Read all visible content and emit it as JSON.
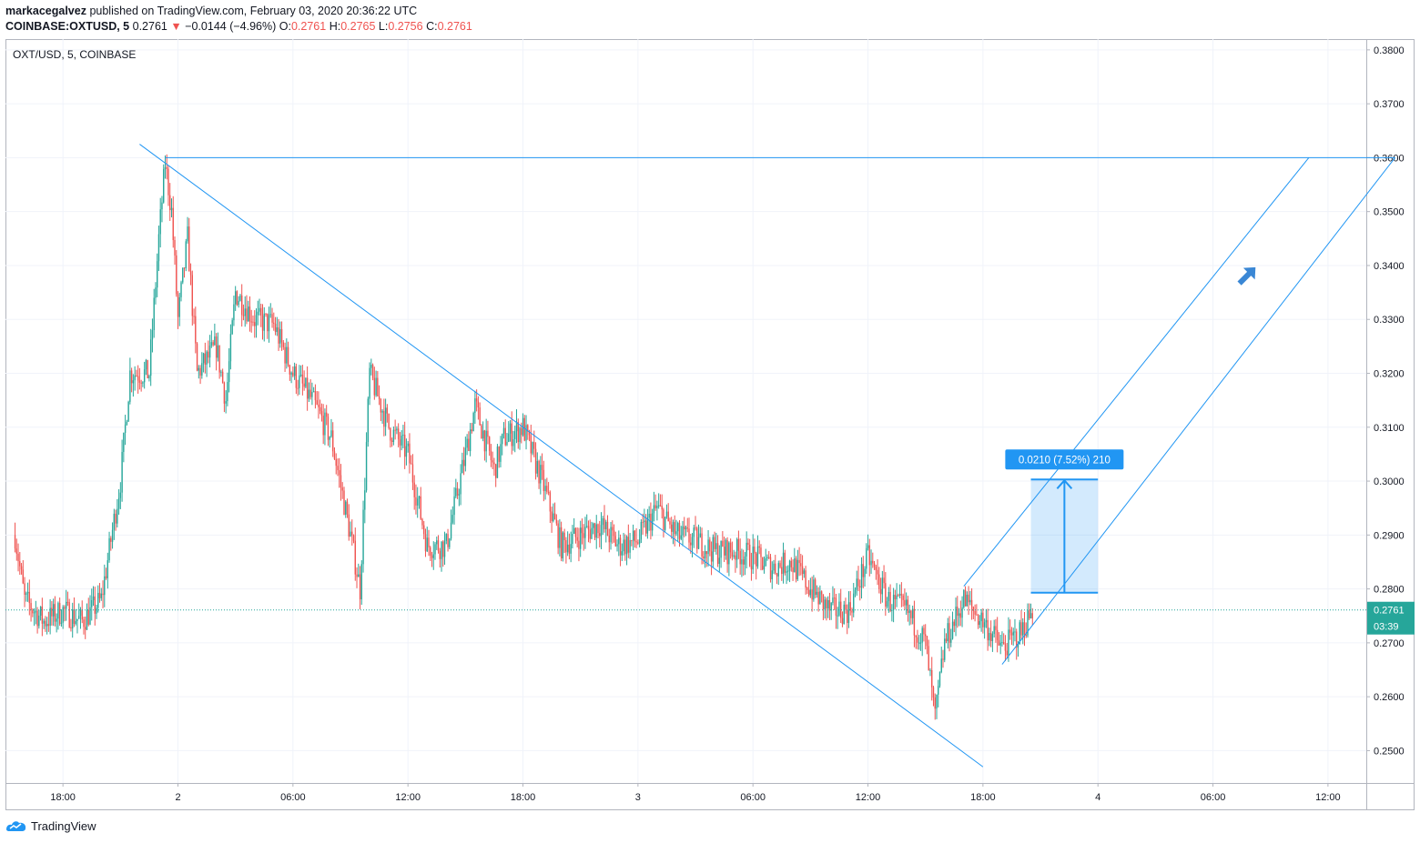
{
  "header": {
    "publisher": "markacegalvez",
    "published_text": "published on TradingView.com, February 03, 2020 20:36:22 UTC",
    "symbol_line": "COINBASE:OXTUSD, 5",
    "last_price": "0.2761",
    "change_arrow": "▼",
    "change": "−0.0144 (−4.96%)",
    "o_label": "O:",
    "o_value": "0.2761",
    "h_label": "H:",
    "h_value": "0.2765",
    "l_label": "L:",
    "l_value": "0.2756",
    "c_label": "C:",
    "c_value": "0.2761"
  },
  "footer": {
    "brand": "TradingView",
    "brand_icon": "tradingview-logo-icon"
  },
  "colors": {
    "up": "#26a69a",
    "down": "#ef5350",
    "drawing": "#2196f3",
    "grid": "#f0f3fa",
    "axis_text": "#131722"
  },
  "chart_data": {
    "type": "candlestick",
    "title": "OXT/USD, 5, COINBASE",
    "xlabel": "",
    "ylabel": "",
    "timeframe_minutes": 5,
    "x_range": [
      "2020-02-01 15:00",
      "2020-02-04 14:00"
    ],
    "ylim": [
      0.244,
      0.382
    ],
    "y_ticks": [
      "0.2500",
      "0.2600",
      "0.2700",
      "0.2800",
      "0.2900",
      "0.3000",
      "0.3100",
      "0.3200",
      "0.3300",
      "0.3400",
      "0.3500",
      "0.3600",
      "0.3700",
      "0.3800"
    ],
    "x_ticks": [
      {
        "t": "2020-02-01 18:00",
        "label": "18:00"
      },
      {
        "t": "2020-02-02 00:00",
        "label": "2"
      },
      {
        "t": "2020-02-02 06:00",
        "label": "06:00"
      },
      {
        "t": "2020-02-02 12:00",
        "label": "12:00"
      },
      {
        "t": "2020-02-02 18:00",
        "label": "18:00"
      },
      {
        "t": "2020-02-03 00:00",
        "label": "3"
      },
      {
        "t": "2020-02-03 06:00",
        "label": "06:00"
      },
      {
        "t": "2020-02-03 12:00",
        "label": "12:00"
      },
      {
        "t": "2020-02-03 18:00",
        "label": "18:00"
      },
      {
        "t": "2020-02-04 00:00",
        "label": "4"
      },
      {
        "t": "2020-02-04 06:00",
        "label": "06:00"
      },
      {
        "t": "2020-02-04 12:00",
        "label": "12:00"
      }
    ],
    "grid": true,
    "price_path": [
      {
        "t": "2020-02-01 15:30",
        "p": 0.29
      },
      {
        "t": "2020-02-01 16:00",
        "p": 0.278
      },
      {
        "t": "2020-02-01 17:00",
        "p": 0.274
      },
      {
        "t": "2020-02-01 18:00",
        "p": 0.276
      },
      {
        "t": "2020-02-01 19:00",
        "p": 0.274
      },
      {
        "t": "2020-02-01 20:00",
        "p": 0.278
      },
      {
        "t": "2020-02-01 21:00",
        "p": 0.3
      },
      {
        "t": "2020-02-01 21:30",
        "p": 0.32
      },
      {
        "t": "2020-02-01 22:30",
        "p": 0.32
      },
      {
        "t": "2020-02-01 23:00",
        "p": 0.345
      },
      {
        "t": "2020-02-01 23:20",
        "p": 0.359
      },
      {
        "t": "2020-02-01 23:40",
        "p": 0.35
      },
      {
        "t": "2020-02-02 00:00",
        "p": 0.33
      },
      {
        "t": "2020-02-02 00:30",
        "p": 0.345
      },
      {
        "t": "2020-02-02 01:00",
        "p": 0.32
      },
      {
        "t": "2020-02-02 02:00",
        "p": 0.325
      },
      {
        "t": "2020-02-02 02:30",
        "p": 0.315
      },
      {
        "t": "2020-02-02 03:00",
        "p": 0.335
      },
      {
        "t": "2020-02-02 04:00",
        "p": 0.33
      },
      {
        "t": "2020-02-02 05:00",
        "p": 0.329
      },
      {
        "t": "2020-02-02 06:00",
        "p": 0.32
      },
      {
        "t": "2020-02-02 07:00",
        "p": 0.315
      },
      {
        "t": "2020-02-02 08:00",
        "p": 0.308
      },
      {
        "t": "2020-02-02 09:00",
        "p": 0.29
      },
      {
        "t": "2020-02-02 09:30",
        "p": 0.28
      },
      {
        "t": "2020-02-02 10:00",
        "p": 0.32
      },
      {
        "t": "2020-02-02 11:00",
        "p": 0.31
      },
      {
        "t": "2020-02-02 12:00",
        "p": 0.305
      },
      {
        "t": "2020-02-02 13:00",
        "p": 0.288
      },
      {
        "t": "2020-02-02 14:00",
        "p": 0.288
      },
      {
        "t": "2020-02-02 15:00",
        "p": 0.305
      },
      {
        "t": "2020-02-02 15:30",
        "p": 0.314
      },
      {
        "t": "2020-02-02 16:30",
        "p": 0.302
      },
      {
        "t": "2020-02-02 17:00",
        "p": 0.308
      },
      {
        "t": "2020-02-02 18:00",
        "p": 0.31
      },
      {
        "t": "2020-02-02 19:00",
        "p": 0.3
      },
      {
        "t": "2020-02-02 20:00",
        "p": 0.288
      },
      {
        "t": "2020-02-02 21:00",
        "p": 0.29
      },
      {
        "t": "2020-02-02 22:00",
        "p": 0.292
      },
      {
        "t": "2020-02-02 23:00",
        "p": 0.288
      },
      {
        "t": "2020-02-03 00:00",
        "p": 0.289
      },
      {
        "t": "2020-02-03 01:00",
        "p": 0.295
      },
      {
        "t": "2020-02-03 02:00",
        "p": 0.29
      },
      {
        "t": "2020-02-03 03:00",
        "p": 0.289
      },
      {
        "t": "2020-02-03 04:00",
        "p": 0.287
      },
      {
        "t": "2020-02-03 05:00",
        "p": 0.287
      },
      {
        "t": "2020-02-03 06:00",
        "p": 0.286
      },
      {
        "t": "2020-02-03 07:00",
        "p": 0.284
      },
      {
        "t": "2020-02-03 08:00",
        "p": 0.285
      },
      {
        "t": "2020-02-03 09:00",
        "p": 0.28
      },
      {
        "t": "2020-02-03 10:00",
        "p": 0.276
      },
      {
        "t": "2020-02-03 11:00",
        "p": 0.276
      },
      {
        "t": "2020-02-03 12:00",
        "p": 0.286
      },
      {
        "t": "2020-02-03 13:00",
        "p": 0.278
      },
      {
        "t": "2020-02-03 14:00",
        "p": 0.276
      },
      {
        "t": "2020-02-03 15:00",
        "p": 0.27
      },
      {
        "t": "2020-02-03 15:30",
        "p": 0.256
      },
      {
        "t": "2020-02-03 16:00",
        "p": 0.27
      },
      {
        "t": "2020-02-03 17:00",
        "p": 0.278
      },
      {
        "t": "2020-02-03 18:00",
        "p": 0.274
      },
      {
        "t": "2020-02-03 19:00",
        "p": 0.269
      },
      {
        "t": "2020-02-03 20:00",
        "p": 0.272
      },
      {
        "t": "2020-02-03 20:35",
        "p": 0.2761
      }
    ],
    "last_price": {
      "value": 0.2761,
      "label": "0.2761",
      "countdown": "03:39",
      "color": "#26a69a"
    },
    "drawings": {
      "horizontal_line": {
        "price": 0.36,
        "from": "2020-02-01 23:20",
        "to": "2020-02-04 15:30"
      },
      "downtrend_line": {
        "from": {
          "t": "2020-02-01 22:00",
          "p": 0.3625
        },
        "to": {
          "t": "2020-02-03 18:00",
          "p": 0.247
        }
      },
      "channel_upper": {
        "from": {
          "t": "2020-02-03 17:00",
          "p": 0.2805
        },
        "to": {
          "t": "2020-02-04 11:00",
          "p": 0.36
        }
      },
      "channel_lower": {
        "from": {
          "t": "2020-02-03 19:00",
          "p": 0.266
        },
        "to": {
          "t": "2020-02-04 15:30",
          "p": 0.36
        }
      },
      "measure_box": {
        "from_t": "2020-02-03 20:30",
        "to_t": "2020-02-04 00:00",
        "low": 0.2793,
        "high": 0.3003,
        "label": "0.0210 (7.52%) 210"
      },
      "arrow_icon": {
        "name": "arrow-up-right-icon",
        "t": "2020-02-04 07:45",
        "p": 0.338
      }
    }
  }
}
